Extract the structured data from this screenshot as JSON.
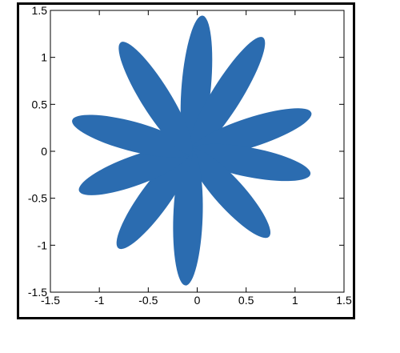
{
  "chart_data": {
    "type": "area",
    "title": "",
    "xlabel": "",
    "ylabel": "",
    "xlim": [
      -1.5,
      1.5
    ],
    "ylim": [
      -1.5,
      1.5
    ],
    "grid": false,
    "legend": "none",
    "fill_color": "#2b6cb0",
    "xticks": [
      -1.5,
      -1,
      -0.5,
      0,
      0.5,
      1,
      1.5
    ],
    "xtick_labels": [
      "-1.5",
      "-1",
      "-0.5",
      "0",
      "0.5",
      "1",
      "1.5"
    ],
    "yticks": [
      1.5,
      1,
      0.5,
      0,
      -0.5,
      -1,
      -1.5
    ],
    "ytick_labels": [
      "1.5",
      "1",
      "0.5",
      "0",
      "-0.5",
      "-1",
      "-1.5"
    ],
    "curve": {
      "description_values": "polar rose r = |cos(5*theta)|, 10 petals",
      "petal_count": 10,
      "center": [
        -0.07,
        0.0
      ],
      "petals": [
        {
          "angle_deg": 85,
          "length": 1.42,
          "half_width": 0.15
        },
        {
          "angle_deg": 58,
          "length": 1.4,
          "half_width": 0.15
        },
        {
          "angle_deg": 18,
          "length": 1.3,
          "half_width": 0.15
        },
        {
          "angle_deg": -11,
          "length": 1.25,
          "half_width": 0.15
        },
        {
          "angle_deg": -48,
          "length": 1.2,
          "half_width": 0.15
        },
        {
          "angle_deg": -92,
          "length": 1.4,
          "half_width": 0.15
        },
        {
          "angle_deg": -126,
          "length": 1.25,
          "half_width": 0.15
        },
        {
          "angle_deg": -160,
          "length": 1.21,
          "half_width": 0.15
        },
        {
          "angle_deg": 165,
          "length": 1.25,
          "half_width": 0.15
        },
        {
          "angle_deg": 122,
          "length": 1.34,
          "half_width": 0.15
        }
      ]
    }
  }
}
